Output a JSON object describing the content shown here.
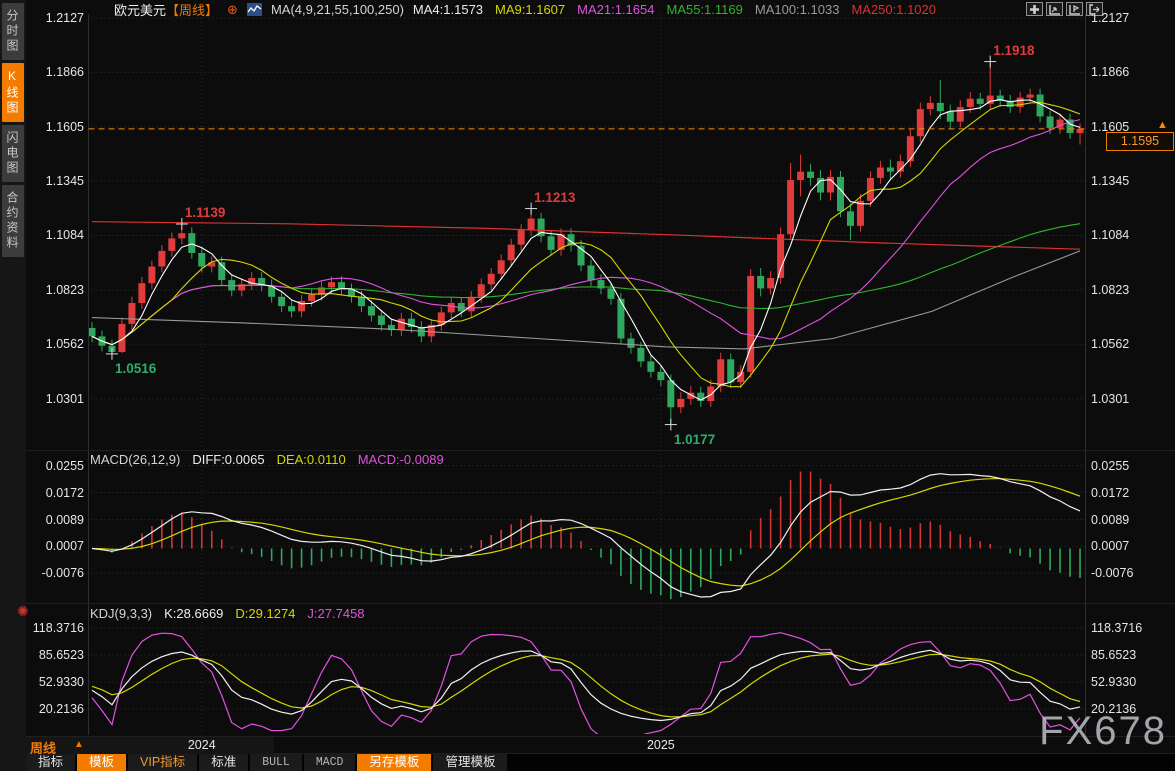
{
  "sidebar": {
    "items": [
      {
        "label": "分时图",
        "active": false
      },
      {
        "label": "K线图",
        "active": true
      },
      {
        "label": "闪电图",
        "active": false
      },
      {
        "label": "合约资料",
        "active": false
      }
    ]
  },
  "header": {
    "symbol": "欧元美元",
    "period_tag": "【周线】",
    "ma_params": "MA(4,9,21,55,100,250)",
    "ma_values": [
      {
        "label": "MA4:1.1573",
        "color": "#ececec"
      },
      {
        "label": "MA9:1.1607",
        "color": "#d6d600"
      },
      {
        "label": "MA21:1.1654",
        "color": "#e052e0"
      },
      {
        "label": "MA55:1.1169",
        "color": "#2db52d"
      },
      {
        "label": "MA100:1.1033",
        "color": "#9a9a9a"
      },
      {
        "label": "MA250:1.1020",
        "color": "#e03030"
      }
    ],
    "toolbar_icons": [
      "pan-icon",
      "axis-zoom-in-icon",
      "axis-flag-icon",
      "exit-right-icon"
    ]
  },
  "price_scale": {
    "labels": [
      "1.2127",
      "1.1866",
      "1.1605",
      "1.1345",
      "1.1084",
      "1.0823",
      "1.0562",
      "1.0301"
    ]
  },
  "current_price": {
    "value": "1.1595",
    "price": 1.1595
  },
  "macd": {
    "title": "MACD(26,12,9)",
    "diff_label": "DIFF:0.0065",
    "dea_label": "DEA:0.0110",
    "macd_label": "MACD:-0.0089",
    "axis": [
      "0.0255",
      "0.0172",
      "0.0089",
      "0.0007",
      "-0.0076"
    ]
  },
  "kdj": {
    "title": "KDJ(9,3,3)",
    "k_label": "K:28.6669",
    "d_label": "D:29.1274",
    "j_label": "J:27.7458",
    "axis": [
      "118.3716",
      "85.6523",
      "52.9330",
      "20.2136"
    ]
  },
  "timeline": {
    "period_label": "周线",
    "arrow": "▲"
  },
  "watermark": "FX678",
  "bottom_tabs": [
    {
      "label": "指标",
      "name": "indicators",
      "style": "plain"
    },
    {
      "label": "模板",
      "name": "templates",
      "style": "active"
    },
    {
      "label": "VIP指标",
      "name": "vip-indicators",
      "style": "orange"
    },
    {
      "label": "标准",
      "name": "standard",
      "style": "plain"
    },
    {
      "label": "BULL",
      "name": "bull",
      "style": "dim"
    },
    {
      "label": "MACD",
      "name": "macd",
      "style": "dim"
    },
    {
      "label": "另存模板",
      "name": "save-template",
      "style": "active"
    },
    {
      "label": "管理模板",
      "name": "manage-templates",
      "style": "plain"
    }
  ],
  "colors": {
    "up_red": "#e13b3b",
    "down_green": "#2fa85f",
    "accent_orange": "#f37b00",
    "current_line": "#ff8a00",
    "grid": "#303030",
    "border": "#2e2e2e",
    "ma4": "#ffffff",
    "ma9": "#d6d600",
    "ma21": "#e052e0",
    "ma55": "#2db52d",
    "ma100": "#9a9a9a",
    "ma250": "#e03030",
    "diff": "#f0f0f0",
    "dea": "#d6d600",
    "macd_hist_pos": "#d13535",
    "macd_hist_neg": "#2fa85f",
    "k": "#f0f0f0",
    "d": "#d6d600",
    "j": "#e052e0",
    "anno_high": "#e03b3b",
    "anno_low": "#2fae6a"
  },
  "chart_data": {
    "type": "candlestick",
    "title": "欧元美元 周线 EUR/USD Weekly",
    "ylim": [
      1.0301,
      1.2127
    ],
    "candles": [
      [
        1.064,
        1.0668,
        1.0572,
        1.06
      ],
      [
        1.06,
        1.0628,
        1.0528,
        1.0555
      ],
      [
        1.0555,
        1.0585,
        1.0516,
        1.0525
      ],
      [
        1.0525,
        1.069,
        1.052,
        1.066
      ],
      [
        1.066,
        1.079,
        1.0632,
        1.076
      ],
      [
        1.076,
        1.0885,
        1.0732,
        1.0855
      ],
      [
        1.0855,
        1.0963,
        1.0827,
        1.0935
      ],
      [
        1.0935,
        1.1038,
        1.0907,
        1.101
      ],
      [
        1.101,
        1.1098,
        1.0982,
        1.107
      ],
      [
        1.107,
        1.1139,
        1.1042,
        1.1095
      ],
      [
        1.1095,
        1.1123,
        1.0972,
        1.1
      ],
      [
        1.1,
        1.1028,
        1.0907,
        1.0935
      ],
      [
        1.0935,
        1.0983,
        1.0907,
        1.0955
      ],
      [
        1.0955,
        1.0983,
        1.0842,
        1.087
      ],
      [
        1.087,
        1.0898,
        1.0792,
        1.082
      ],
      [
        1.082,
        1.0878,
        1.0792,
        1.085
      ],
      [
        1.085,
        1.0908,
        1.0822,
        1.088
      ],
      [
        1.088,
        1.0908,
        1.0817,
        1.0845
      ],
      [
        1.0845,
        1.0873,
        1.0762,
        1.079
      ],
      [
        1.079,
        1.0818,
        1.0717,
        1.0745
      ],
      [
        1.0745,
        1.0773,
        1.0692,
        1.072
      ],
      [
        1.072,
        1.0798,
        1.0692,
        1.077
      ],
      [
        1.077,
        1.0828,
        1.0742,
        1.08
      ],
      [
        1.08,
        1.0863,
        1.0772,
        1.0835
      ],
      [
        1.0835,
        1.0888,
        1.0807,
        1.086
      ],
      [
        1.086,
        1.0888,
        1.0797,
        1.0825
      ],
      [
        1.0825,
        1.0853,
        1.0762,
        1.079
      ],
      [
        1.079,
        1.0818,
        1.0717,
        1.0745
      ],
      [
        1.0745,
        1.0773,
        1.0672,
        1.07
      ],
      [
        1.07,
        1.0728,
        1.0627,
        1.0655
      ],
      [
        1.0655,
        1.0683,
        1.0602,
        1.063
      ],
      [
        1.063,
        1.0713,
        1.0602,
        1.0685
      ],
      [
        1.0685,
        1.0713,
        1.0617,
        1.0645
      ],
      [
        1.0645,
        1.0673,
        1.0572,
        1.06
      ],
      [
        1.06,
        1.0683,
        1.0572,
        1.0655
      ],
      [
        1.0655,
        1.0743,
        1.0627,
        1.0715
      ],
      [
        1.0715,
        1.0788,
        1.0687,
        1.076
      ],
      [
        1.076,
        1.0788,
        1.0692,
        1.072
      ],
      [
        1.072,
        1.0818,
        1.0692,
        1.079
      ],
      [
        1.079,
        1.0878,
        1.0762,
        1.085
      ],
      [
        1.085,
        1.0928,
        1.0822,
        1.09
      ],
      [
        1.09,
        1.0993,
        1.0872,
        1.0965
      ],
      [
        1.0965,
        1.1068,
        1.0937,
        1.104
      ],
      [
        1.104,
        1.1138,
        1.1012,
        1.111
      ],
      [
        1.111,
        1.1213,
        1.1082,
        1.1165
      ],
      [
        1.1165,
        1.1193,
        1.1052,
        1.108
      ],
      [
        1.108,
        1.1108,
        1.0987,
        1.1015
      ],
      [
        1.1015,
        1.1118,
        1.0987,
        1.109
      ],
      [
        1.109,
        1.1118,
        1.1007,
        1.1035
      ],
      [
        1.1035,
        1.1063,
        1.0912,
        1.094
      ],
      [
        1.094,
        1.0968,
        1.0842,
        1.087
      ],
      [
        1.087,
        1.0898,
        1.0802,
        1.083
      ],
      [
        1.083,
        1.0858,
        1.0752,
        1.078
      ],
      [
        1.078,
        1.0808,
        1.0562,
        1.059
      ],
      [
        1.059,
        1.0618,
        1.0517,
        1.0545
      ],
      [
        1.0545,
        1.0573,
        1.0452,
        1.048
      ],
      [
        1.048,
        1.0508,
        1.0402,
        1.043
      ],
      [
        1.043,
        1.0458,
        1.0362,
        1.039
      ],
      [
        1.039,
        1.0418,
        1.0177,
        1.026
      ],
      [
        1.026,
        1.0332,
        1.0232,
        1.03
      ],
      [
        1.03,
        1.0362,
        1.0272,
        1.033
      ],
      [
        1.033,
        1.0358,
        1.0262,
        1.029
      ],
      [
        1.029,
        1.0392,
        1.0262,
        1.036
      ],
      [
        1.036,
        1.0522,
        1.0332,
        1.049
      ],
      [
        1.049,
        1.0518,
        1.0352,
        1.038
      ],
      [
        1.038,
        1.0462,
        1.0352,
        1.043
      ],
      [
        1.043,
        1.0922,
        1.0402,
        1.089
      ],
      [
        1.089,
        1.0928,
        1.0792,
        1.083
      ],
      [
        1.083,
        1.0912,
        1.0802,
        1.088
      ],
      [
        1.088,
        1.1122,
        1.0852,
        1.109
      ],
      [
        1.109,
        1.1432,
        1.1062,
        1.135
      ],
      [
        1.135,
        1.1472,
        1.1272,
        1.139
      ],
      [
        1.139,
        1.1428,
        1.1322,
        1.136
      ],
      [
        1.136,
        1.1398,
        1.1252,
        1.129
      ],
      [
        1.129,
        1.1398,
        1.1252,
        1.1365
      ],
      [
        1.1365,
        1.1393,
        1.1172,
        1.12
      ],
      [
        1.12,
        1.1238,
        1.1062,
        1.113
      ],
      [
        1.113,
        1.1282,
        1.1102,
        1.125
      ],
      [
        1.125,
        1.1392,
        1.1222,
        1.136
      ],
      [
        1.136,
        1.1442,
        1.1332,
        1.141
      ],
      [
        1.141,
        1.1448,
        1.1352,
        1.139
      ],
      [
        1.139,
        1.1472,
        1.1362,
        1.144
      ],
      [
        1.144,
        1.1592,
        1.1412,
        1.156
      ],
      [
        1.156,
        1.1722,
        1.1532,
        1.169
      ],
      [
        1.169,
        1.1752,
        1.1662,
        1.172
      ],
      [
        1.172,
        1.183,
        1.1642,
        1.168
      ],
      [
        1.168,
        1.1712,
        1.1592,
        1.163
      ],
      [
        1.163,
        1.1732,
        1.1602,
        1.17
      ],
      [
        1.17,
        1.1772,
        1.1672,
        1.174
      ],
      [
        1.174,
        1.1768,
        1.1687,
        1.1715
      ],
      [
        1.1715,
        1.1918,
        1.1687,
        1.1755
      ],
      [
        1.1755,
        1.1783,
        1.1702,
        1.173
      ],
      [
        1.173,
        1.1758,
        1.1672,
        1.17
      ],
      [
        1.17,
        1.1773,
        1.1672,
        1.1745
      ],
      [
        1.1745,
        1.1788,
        1.1717,
        1.176
      ],
      [
        1.176,
        1.1788,
        1.1627,
        1.1655
      ],
      [
        1.1655,
        1.1683,
        1.1572,
        1.16
      ],
      [
        1.16,
        1.1668,
        1.1572,
        1.164
      ],
      [
        1.164,
        1.1668,
        1.1547,
        1.1575
      ],
      [
        1.1575,
        1.1622,
        1.152,
        1.1595
      ]
    ],
    "ma_overlays": {
      "ma100_anchors": [
        [
          0,
          1.069
        ],
        [
          0.15,
          1.0665
        ],
        [
          0.3,
          1.0635
        ],
        [
          0.45,
          1.059
        ],
        [
          0.58,
          1.055
        ],
        [
          0.66,
          1.054
        ],
        [
          0.75,
          1.059
        ],
        [
          0.85,
          1.072
        ],
        [
          0.93,
          1.088
        ],
        [
          1,
          1.101
        ]
      ],
      "ma250_anchors": [
        [
          0,
          1.115
        ],
        [
          0.2,
          1.114
        ],
        [
          0.4,
          1.1118
        ],
        [
          0.6,
          1.1085
        ],
        [
          0.8,
          1.1048
        ],
        [
          1,
          1.1018
        ]
      ]
    },
    "annotations": [
      {
        "text": "1.0516",
        "index": 2,
        "price": 1.0516,
        "type": "low"
      },
      {
        "text": "1.1139",
        "index": 9,
        "price": 1.1139,
        "type": "high"
      },
      {
        "text": "1.1213",
        "index": 44,
        "price": 1.1213,
        "type": "high"
      },
      {
        "text": "1.0177",
        "index": 58,
        "price": 1.0177,
        "type": "low"
      },
      {
        "text": "1.1918",
        "index": 90,
        "price": 1.1918,
        "type": "high"
      }
    ],
    "year_ticks": [
      {
        "label": "2024",
        "index": 11
      },
      {
        "label": "2025",
        "index": 57
      }
    ]
  }
}
